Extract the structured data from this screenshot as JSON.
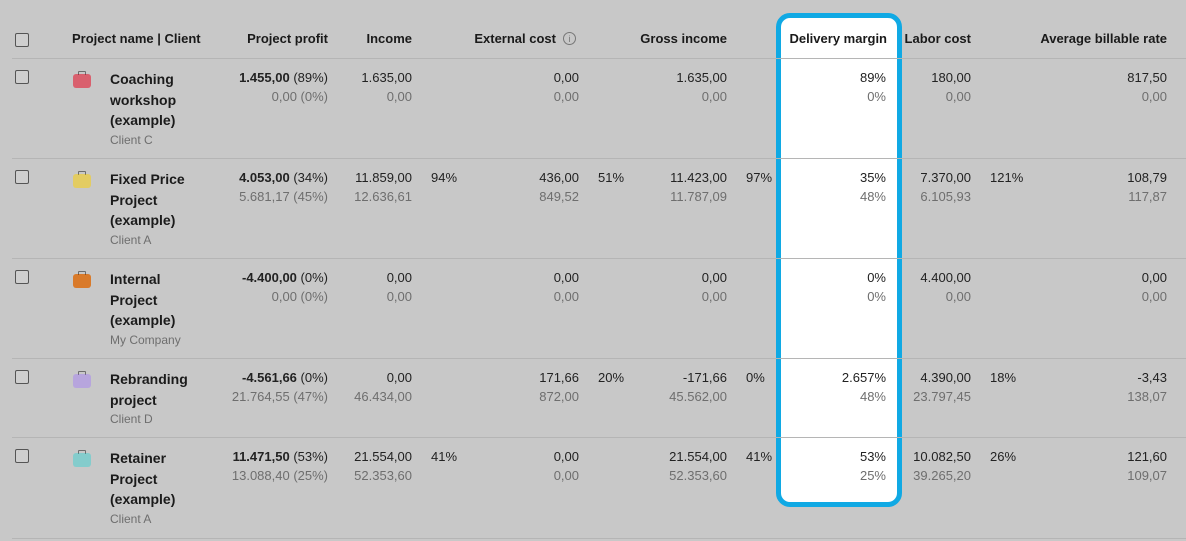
{
  "header": {
    "project_client": "Project name | Client",
    "project_profit": "Project profit",
    "income": "Income",
    "external_cost": "External cost",
    "gross_income": "Gross income",
    "delivery_margin": "Delivery margin",
    "labor_cost": "Labor cost",
    "avg_rate": "Average billable rate"
  },
  "rows": [
    {
      "name": "Coaching workshop (example)",
      "client": "Client C",
      "color": "#d9606e",
      "profit_main": "1.455,00",
      "profit_pct": "(89%)",
      "profit_sub": "0,00 (0%)",
      "income_main": "1.635,00",
      "income_sub": "0,00",
      "income_pct": "",
      "ext_main": "0,00",
      "ext_sub": "0,00",
      "ext_pct": "",
      "gross_main": "1.635,00",
      "gross_sub": "0,00",
      "gross_pct": "",
      "dm_main": "89%",
      "dm_sub": "0%",
      "labor_main": "180,00",
      "labor_sub": "0,00",
      "labor_pct": "",
      "rate_main": "817,50",
      "rate_sub": "0,00"
    },
    {
      "name": "Fixed Price Project (example)",
      "client": "Client A",
      "color": "#e3cc62",
      "profit_main": "4.053,00",
      "profit_pct": "(34%)",
      "profit_sub": "5.681,17 (45%)",
      "income_main": "11.859,00",
      "income_sub": "12.636,61",
      "income_pct": "94%",
      "ext_main": "436,00",
      "ext_sub": "849,52",
      "ext_pct": "51%",
      "gross_main": "11.423,00",
      "gross_sub": "11.787,09",
      "gross_pct": "97%",
      "dm_main": "35%",
      "dm_sub": "48%",
      "labor_main": "7.370,00",
      "labor_sub": "6.105,93",
      "labor_pct": "121%",
      "rate_main": "108,79",
      "rate_sub": "117,87"
    },
    {
      "name": "Internal Project (example)",
      "client": "My Company",
      "color": "#d97a2a",
      "profit_main": "-4.400,00",
      "profit_pct": "(0%)",
      "profit_sub": "0,00 (0%)",
      "income_main": "0,00",
      "income_sub": "0,00",
      "income_pct": "",
      "ext_main": "0,00",
      "ext_sub": "0,00",
      "ext_pct": "",
      "gross_main": "0,00",
      "gross_sub": "0,00",
      "gross_pct": "",
      "dm_main": "0%",
      "dm_sub": "0%",
      "labor_main": "4.400,00",
      "labor_sub": "0,00",
      "labor_pct": "",
      "rate_main": "0,00",
      "rate_sub": "0,00"
    },
    {
      "name": "Rebranding project",
      "client": "Client D",
      "color": "#b7a5dd",
      "profit_main": "-4.561,66",
      "profit_pct": "(0%)",
      "profit_sub": "21.764,55 (47%)",
      "income_main": "0,00",
      "income_sub": "46.434,00",
      "income_pct": "",
      "ext_main": "171,66",
      "ext_sub": "872,00",
      "ext_pct": "20%",
      "gross_main": "-171,66",
      "gross_sub": "45.562,00",
      "gross_pct": "0%",
      "dm_main": "2.657%",
      "dm_sub": "48%",
      "labor_main": "4.390,00",
      "labor_sub": "23.797,45",
      "labor_pct": "18%",
      "rate_main": "-3,43",
      "rate_sub": "138,07"
    },
    {
      "name": "Retainer Project (example)",
      "client": "Client A",
      "color": "#84cccc",
      "profit_main": "11.471,50",
      "profit_pct": "(53%)",
      "profit_sub": "13.088,40 (25%)",
      "income_main": "21.554,00",
      "income_sub": "52.353,60",
      "income_pct": "41%",
      "ext_main": "0,00",
      "ext_sub": "0,00",
      "ext_pct": "",
      "gross_main": "21.554,00",
      "gross_sub": "52.353,60",
      "gross_pct": "41%",
      "dm_main": "53%",
      "dm_sub": "25%",
      "labor_main": "10.082,50",
      "labor_sub": "39.265,20",
      "labor_pct": "26%",
      "rate_main": "121,60",
      "rate_sub": "109,07"
    }
  ]
}
